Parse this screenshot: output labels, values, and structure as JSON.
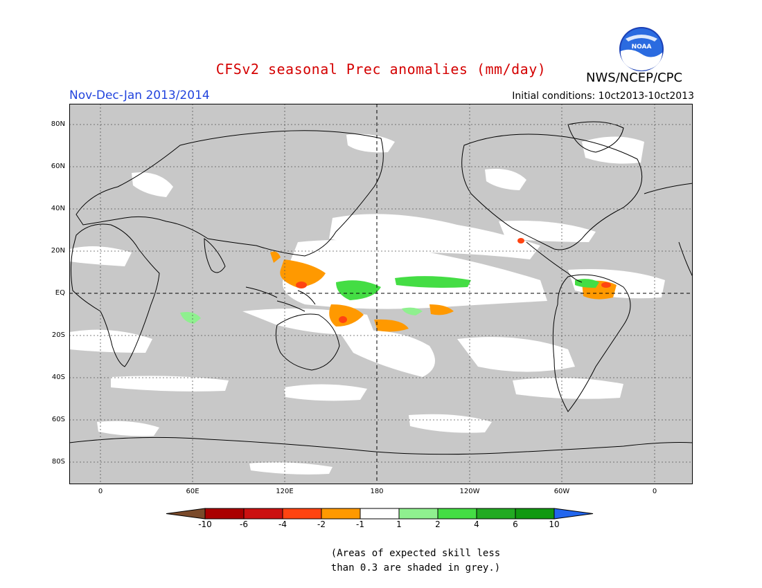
{
  "title": "CFSv2 seasonal Prec anomalies (mm/day)",
  "agency": "NWS/NCEP/CPC",
  "logo_text": "NOAA",
  "season": "Nov-Dec-Jan 2013/2014",
  "initial_conditions": "Initial conditions: 10ct2013-10ct2013",
  "lat_labels": [
    "80N",
    "60N",
    "40N",
    "20N",
    "EQ",
    "20S",
    "40S",
    "60S",
    "80S"
  ],
  "lon_labels": [
    "0",
    "60E",
    "120E",
    "180",
    "120W",
    "60W",
    "0"
  ],
  "colorbar": {
    "labels": [
      "-10",
      "-6",
      "-4",
      "-2",
      "-1",
      "1",
      "2",
      "4",
      "6",
      "10"
    ],
    "colors": [
      "#7a4a2a",
      "#aa0000",
      "#cc1111",
      "#ff4411",
      "#ff9900",
      "#ffffff",
      "#8ff08f",
      "#44dd44",
      "#22aa22",
      "#119911",
      "#2266ee"
    ]
  },
  "note_line1": "(Areas of expected skill less",
  "note_line2": "than 0.3 are shaded in grey.)",
  "colors": {
    "skill_mask": "#c8c8c8",
    "title": "#d40000",
    "season": "#2244dd",
    "coast": "#000000"
  }
}
